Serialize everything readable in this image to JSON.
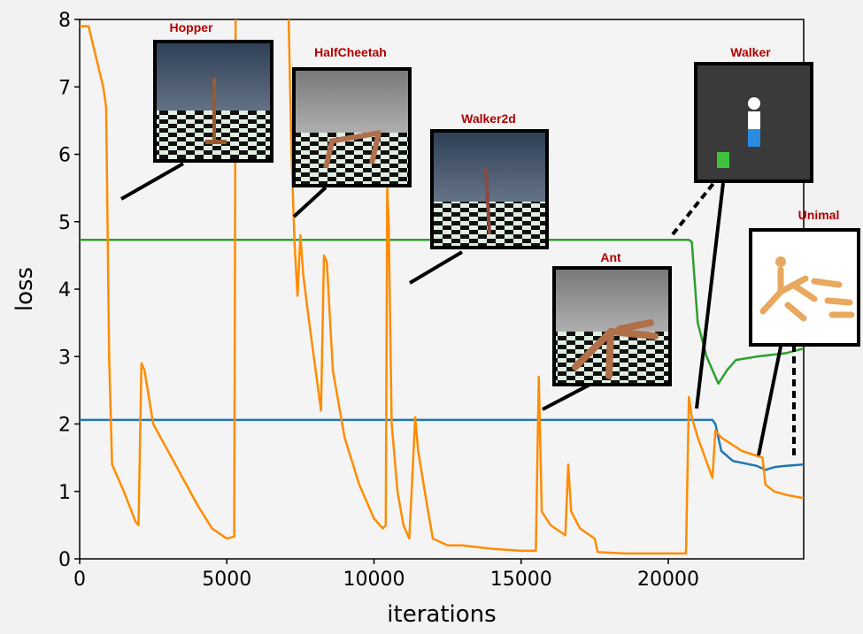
{
  "chart_data": {
    "type": "line",
    "x_label": "iterations",
    "y_label": "loss",
    "xlim": [
      0,
      24600
    ],
    "ylim": [
      0,
      8
    ],
    "xticks": [
      0,
      5000,
      10000,
      15000,
      20000
    ],
    "yticks": [
      0,
      1,
      2,
      3,
      4,
      5,
      6,
      7,
      8
    ],
    "annotations": [
      "Hopper",
      "HalfCheetah",
      "Walker2d",
      "Ant",
      "Walker",
      "Unimal"
    ],
    "series": [
      {
        "color": "#1f77b4",
        "x": [
          0,
          21500,
          21600,
          21800,
          22200,
          23000,
          23300,
          23600,
          24000,
          24600
        ],
        "values": [
          2.06,
          2.06,
          2.0,
          1.6,
          1.45,
          1.38,
          1.32,
          1.36,
          1.38,
          1.4
        ]
      },
      {
        "color": "#2ca02c",
        "x": [
          0,
          20700,
          20800,
          21000,
          21300,
          21600,
          21700,
          22000,
          22300,
          23000,
          24000,
          24600
        ],
        "values": [
          4.73,
          4.73,
          4.7,
          3.5,
          3.0,
          2.7,
          2.6,
          2.8,
          2.95,
          3.0,
          3.05,
          3.12
        ]
      },
      {
        "color": "#ff8c00",
        "x": [
          0,
          300,
          800,
          900,
          1000,
          1100,
          1500,
          1900,
          2000,
          2100,
          2200,
          2500,
          3000,
          3500,
          4000,
          4500,
          5000,
          5250,
          5300,
          6200,
          7100,
          7200,
          7300,
          7400,
          7500,
          7600,
          7800,
          8200,
          8300,
          8400,
          8600,
          9000,
          9500,
          10000,
          10300,
          10400,
          10450,
          10500,
          10600,
          10800,
          11000,
          11200,
          11400,
          11500,
          11800,
          12000,
          12500,
          13000,
          14000,
          15000,
          15500,
          15600,
          15700,
          16000,
          16500,
          16600,
          16700,
          17000,
          17500,
          17600,
          18500,
          20000,
          20600,
          20700,
          20800,
          21000,
          21500,
          21600,
          21800,
          22500,
          23200,
          23300,
          23600,
          24000,
          24600
        ],
        "values": [
          7.9,
          7.9,
          7.0,
          6.7,
          3.0,
          1.4,
          1.0,
          0.55,
          0.5,
          2.9,
          2.8,
          2.0,
          1.6,
          1.2,
          0.8,
          0.45,
          0.3,
          0.33,
          8,
          null,
          8,
          6.0,
          4.7,
          3.9,
          4.8,
          4.2,
          3.5,
          2.2,
          4.5,
          4.4,
          2.8,
          1.8,
          1.1,
          0.6,
          0.45,
          0.5,
          5.5,
          5.0,
          2.0,
          1.0,
          0.5,
          0.3,
          2.1,
          1.6,
          0.8,
          0.3,
          0.2,
          0.2,
          0.15,
          0.12,
          0.12,
          2.7,
          0.7,
          0.5,
          0.35,
          1.4,
          0.7,
          0.45,
          0.3,
          0.1,
          0.08,
          0.08,
          0.08,
          2.4,
          2.1,
          1.8,
          1.2,
          1.9,
          1.8,
          1.6,
          1.5,
          1.1,
          1.0,
          0.95,
          0.9
        ]
      }
    ]
  }
}
